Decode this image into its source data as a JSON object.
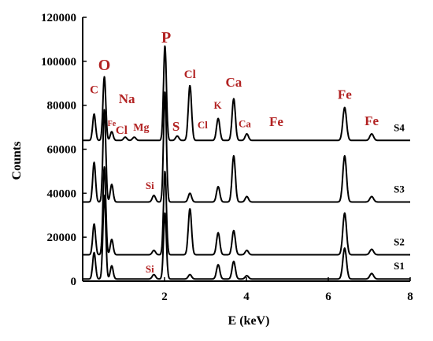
{
  "chart_data": {
    "type": "line",
    "title": "",
    "xlabel": "E (keV)",
    "ylabel": "Counts",
    "xlim": [
      0,
      8
    ],
    "ylim": [
      0,
      120000
    ],
    "x_ticks": [
      "2",
      "4",
      "6",
      "8"
    ],
    "y_ticks": [
      "0",
      "20000",
      "40000",
      "60000",
      "80000",
      "100000",
      "120000"
    ],
    "grid": false,
    "line_color": "#000000",
    "annotation_color": "#b22222",
    "series": [
      {
        "name": "S1",
        "baseline": 1000,
        "peaks": [
          [
            0.28,
            12000,
            0.035
          ],
          [
            0.53,
            38000,
            0.035
          ],
          [
            0.71,
            6000,
            0.035
          ],
          [
            1.74,
            2000,
            0.04
          ],
          [
            2.01,
            30000,
            0.035
          ],
          [
            2.62,
            2000,
            0.04
          ],
          [
            3.31,
            6500,
            0.04
          ],
          [
            3.69,
            8000,
            0.04
          ],
          [
            4.01,
            1500,
            0.04
          ],
          [
            6.4,
            14000,
            0.045
          ],
          [
            7.06,
            2500,
            0.045
          ]
        ]
      },
      {
        "name": "S2",
        "baseline": 12000,
        "peaks": [
          [
            0.28,
            14000,
            0.035
          ],
          [
            0.53,
            40000,
            0.035
          ],
          [
            0.71,
            7000,
            0.035
          ],
          [
            1.74,
            2000,
            0.04
          ],
          [
            2.01,
            38000,
            0.035
          ],
          [
            2.62,
            21000,
            0.04
          ],
          [
            3.31,
            10000,
            0.04
          ],
          [
            3.69,
            11000,
            0.04
          ],
          [
            4.01,
            2000,
            0.04
          ],
          [
            6.4,
            19000,
            0.045
          ],
          [
            7.06,
            2500,
            0.045
          ]
        ]
      },
      {
        "name": "S3",
        "baseline": 36000,
        "peaks": [
          [
            0.28,
            18000,
            0.035
          ],
          [
            0.53,
            42000,
            0.035
          ],
          [
            0.71,
            8000,
            0.035
          ],
          [
            1.74,
            3000,
            0.04
          ],
          [
            2.01,
            50000,
            0.035
          ],
          [
            2.62,
            4000,
            0.04
          ],
          [
            3.31,
            7000,
            0.04
          ],
          [
            3.69,
            21000,
            0.04
          ],
          [
            4.01,
            2500,
            0.04
          ],
          [
            6.4,
            21000,
            0.045
          ],
          [
            7.06,
            2500,
            0.045
          ]
        ]
      },
      {
        "name": "S4",
        "baseline": 64000,
        "peaks": [
          [
            0.28,
            12000,
            0.035
          ],
          [
            0.53,
            29000,
            0.035
          ],
          [
            0.71,
            4000,
            0.035
          ],
          [
            1.04,
            1500,
            0.04
          ],
          [
            1.26,
            1500,
            0.04
          ],
          [
            2.01,
            43000,
            0.035
          ],
          [
            2.31,
            2000,
            0.04
          ],
          [
            2.62,
            25000,
            0.04
          ],
          [
            3.31,
            10000,
            0.04
          ],
          [
            3.69,
            19000,
            0.04
          ],
          [
            4.01,
            3000,
            0.04
          ],
          [
            6.4,
            15000,
            0.045
          ],
          [
            7.06,
            3000,
            0.045
          ]
        ]
      }
    ],
    "annotations": [
      {
        "text": "C",
        "x": 0.28,
        "y": 85500,
        "size": 15
      },
      {
        "text": "O",
        "x": 0.53,
        "y": 96000,
        "size": 20
      },
      {
        "text": "Fe",
        "x": 0.71,
        "y": 70500,
        "size": 10
      },
      {
        "text": "Na",
        "x": 1.08,
        "y": 81000,
        "size": 17
      },
      {
        "text": "Cl",
        "x": 0.95,
        "y": 67000,
        "size": 15
      },
      {
        "text": "Mg",
        "x": 1.43,
        "y": 68500,
        "size": 14
      },
      {
        "text": "S",
        "x": 2.28,
        "y": 68500,
        "size": 17
      },
      {
        "text": "P",
        "x": 2.04,
        "y": 108500,
        "size": 20
      },
      {
        "text": "Cl",
        "x": 2.62,
        "y": 92500,
        "size": 15
      },
      {
        "text": "Cl",
        "x": 2.93,
        "y": 69500,
        "size": 13
      },
      {
        "text": "K",
        "x": 3.3,
        "y": 78500,
        "size": 13
      },
      {
        "text": "Ca",
        "x": 3.69,
        "y": 88500,
        "size": 17
      },
      {
        "text": "Ca",
        "x": 3.96,
        "y": 70000,
        "size": 13
      },
      {
        "text": "Fe",
        "x": 4.73,
        "y": 70500,
        "size": 17
      },
      {
        "text": "Fe",
        "x": 6.4,
        "y": 83000,
        "size": 17
      },
      {
        "text": "Fe",
        "x": 7.06,
        "y": 71000,
        "size": 17
      },
      {
        "text": "Si",
        "x": 1.64,
        "y": 42000,
        "size": 13
      },
      {
        "text": "Si",
        "x": 1.64,
        "y": 4000,
        "size": 13
      }
    ]
  }
}
